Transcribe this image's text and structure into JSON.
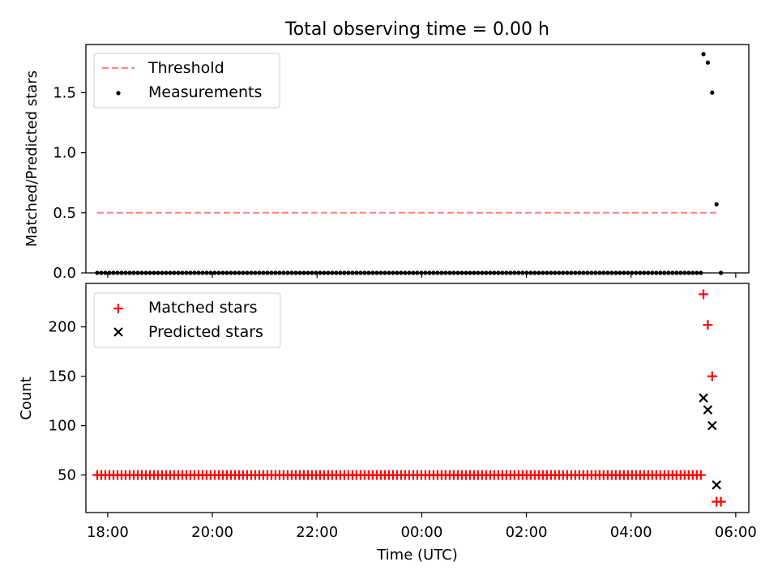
{
  "figure_title": "Total observing time = 0.00 h",
  "colors": {
    "threshold": "#ff7f7f",
    "measurement": "#000000",
    "matched": "#ff0000",
    "predicted": "#000000"
  },
  "chart_data": [
    {
      "type": "scatter",
      "title": "Total observing time = 0.00 h",
      "xlabel": "",
      "ylabel": "Matched/Predicted stars",
      "ylim": [
        0,
        1.9
      ],
      "yticks": [
        0.0,
        0.5,
        1.0,
        1.5
      ],
      "ytick_labels": [
        "0.0",
        "0.5",
        "1.0",
        "1.5"
      ],
      "xlim": [
        "17:35",
        "06:15"
      ],
      "xticks": [
        "18:00",
        "20:00",
        "22:00",
        "00:00",
        "02:00",
        "04:00",
        "06:00"
      ],
      "legend": {
        "placement": "upper-left",
        "entries": [
          "Threshold",
          "Measurements"
        ]
      },
      "threshold": {
        "name": "Threshold",
        "y": 0.5,
        "x_start": "17:48",
        "x_end": "05:40",
        "style": "dashed"
      },
      "measurements": {
        "name": "Measurements",
        "zero_series": {
          "x_start": "17:48",
          "x_end": "05:20",
          "count": 150,
          "y": 0
        },
        "points": [
          {
            "x": "05:23",
            "y": 1.82
          },
          {
            "x": "05:28",
            "y": 1.75
          },
          {
            "x": "05:33",
            "y": 1.5
          },
          {
            "x": "05:38",
            "y": 0.57
          },
          {
            "x": "05:43",
            "y": 0.0
          }
        ]
      }
    },
    {
      "type": "scatter",
      "title": "",
      "xlabel": "Time (UTC)",
      "ylabel": "Count",
      "ylim": [
        12,
        244
      ],
      "yticks": [
        50,
        100,
        150,
        200
      ],
      "ytick_labels": [
        "50",
        "100",
        "150",
        "200"
      ],
      "xlim": [
        "17:35",
        "06:15"
      ],
      "xticks": [
        "18:00",
        "20:00",
        "22:00",
        "00:00",
        "02:00",
        "04:00",
        "06:00"
      ],
      "xtick_labels": [
        "18:00",
        "20:00",
        "22:00",
        "00:00",
        "02:00",
        "04:00",
        "06:00"
      ],
      "legend": {
        "placement": "upper-left",
        "entries": [
          "Matched stars",
          "Predicted stars"
        ]
      },
      "matched": {
        "name": "Matched stars",
        "constant_series": {
          "x_start": "17:48",
          "x_end": "05:20",
          "count": 150,
          "y": 50
        },
        "points": [
          {
            "x": "05:23",
            "y": 233
          },
          {
            "x": "05:28",
            "y": 202
          },
          {
            "x": "05:33",
            "y": 150
          },
          {
            "x": "05:38",
            "y": 23
          },
          {
            "x": "05:43",
            "y": 23
          }
        ]
      },
      "predicted": {
        "name": "Predicted stars",
        "points": [
          {
            "x": "05:23",
            "y": 128
          },
          {
            "x": "05:28",
            "y": 116
          },
          {
            "x": "05:33",
            "y": 100
          },
          {
            "x": "05:38",
            "y": 40
          }
        ]
      }
    }
  ]
}
